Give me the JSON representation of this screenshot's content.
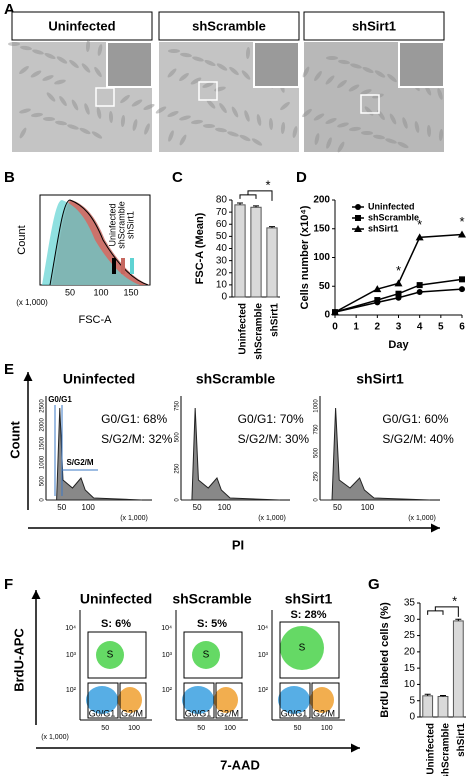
{
  "figure": {
    "panel_labels": [
      "A",
      "B",
      "C",
      "D",
      "E",
      "F",
      "G"
    ],
    "A": {
      "images": [
        "Uninfected",
        "shScramble",
        "shSirt1"
      ]
    },
    "B": {
      "y_label": "Count",
      "x_label": "FSC-A",
      "x_unit": "(x 1,000)",
      "x_ticks": [
        "50",
        "100",
        "150"
      ],
      "legend": [
        "Uninfected",
        "shScramble",
        "shSirt1"
      ]
    },
    "E": {
      "y_label": "Count",
      "x_label": "PI",
      "x_unit": "(x 1,000)",
      "gate_labels": [
        "G0/G1",
        "S/G2/M"
      ],
      "plots": [
        {
          "title": "Uninfected",
          "lines": [
            "G0/G1:  68%",
            "S/G2/M:  32%"
          ],
          "y_ticks": [
            "0",
            "500",
            "1000",
            "1500",
            "2000",
            "2500"
          ],
          "x_ticks": [
            "50",
            "100"
          ]
        },
        {
          "title": "shScramble",
          "lines": [
            "G0/G1:  70%",
            "S/G2/M:  30%"
          ],
          "y_ticks": [
            "0",
            "250",
            "500",
            "750"
          ],
          "x_ticks": [
            "50",
            "100"
          ]
        },
        {
          "title": "shSirt1",
          "lines": [
            "G0/G1:  60%",
            "S/G2/M:  40%"
          ],
          "y_ticks": [
            "0",
            "250",
            "500",
            "750",
            "1000"
          ],
          "x_ticks": [
            "50",
            "100"
          ]
        }
      ]
    },
    "F": {
      "y_label": "BrdU-APC",
      "x_label": "7-AAD",
      "x_unit": "(x 1,000)",
      "y_ticks": [
        "10⁴",
        "10³",
        "10²"
      ],
      "x_ticks": [
        "50",
        "100"
      ],
      "gates": [
        "S",
        "G0/G1",
        "G2/M"
      ],
      "plots": [
        {
          "title": "Uninfected",
          "s_label": "S: 6%"
        },
        {
          "title": "shScramble",
          "s_label": "S: 5%"
        },
        {
          "title": "shSirt1",
          "s_label": "S: 28%"
        }
      ]
    }
  },
  "chart_data": [
    {
      "type": "bar",
      "y_label": "FSC-A (Mean)",
      "categories": [
        "Uninfected",
        "shScramble",
        "shSirt1"
      ],
      "values": [
        76,
        74,
        57
      ],
      "errors": [
        1.5,
        1.2,
        1
      ],
      "color": "#d9d9d9",
      "ylim": [
        0,
        80
      ],
      "yticks": [
        0,
        10,
        20,
        30,
        40,
        50,
        60,
        70,
        80
      ],
      "annotations": [
        {
          "text": "*"
        }
      ]
    },
    {
      "type": "line",
      "x_label": "Day",
      "y_label": "Cells number (x10⁴)",
      "x": [
        0,
        2,
        3,
        4,
        6
      ],
      "series": [
        {
          "name": "Uninfected",
          "marker": "circle",
          "color": "#000000",
          "values": [
            5,
            22,
            30,
            40,
            45
          ]
        },
        {
          "name": "shScramble",
          "marker": "square",
          "color": "#000000",
          "values": [
            5,
            26,
            37,
            52,
            62
          ]
        },
        {
          "name": "shSirt1",
          "marker": "triangle",
          "color": "#000000",
          "values": [
            5,
            45,
            55,
            135,
            140
          ]
        }
      ],
      "xlim": [
        0,
        6
      ],
      "xticks": [
        0,
        1,
        2,
        3,
        4,
        5,
        6
      ],
      "ylim": [
        0,
        200
      ],
      "yticks": [
        0,
        50,
        100,
        150,
        200
      ],
      "annotations": [
        {
          "text": "*",
          "x": 3
        },
        {
          "text": "*",
          "x": 4
        },
        {
          "text": "*",
          "x": 6
        }
      ]
    },
    {
      "type": "bar",
      "y_label": "BrdU labeled cells (%)",
      "categories": [
        "Uninfected",
        "shScramble",
        "shSirt1"
      ],
      "values": [
        6.5,
        6.3,
        29.5
      ],
      "errors": [
        0.5,
        0.3,
        0.5
      ],
      "color": "#d9d9d9",
      "ylim": [
        0,
        35
      ],
      "yticks": [
        0,
        5,
        10,
        15,
        20,
        25,
        30,
        35
      ],
      "annotations": [
        {
          "text": "*"
        }
      ]
    }
  ]
}
